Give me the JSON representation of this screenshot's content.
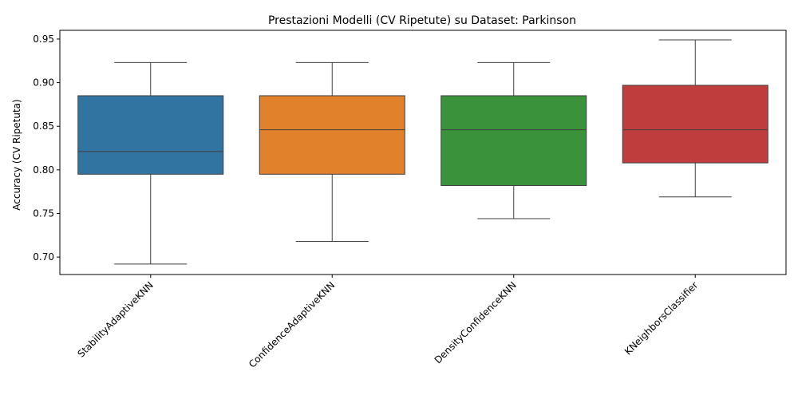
{
  "chart_data": {
    "type": "box",
    "title": "Prestazioni Modelli (CV Ripetute) su Dataset: Parkinson",
    "xlabel": "",
    "ylabel": "Accuracy (CV Ripetuta)",
    "ylim": [
      0.68,
      0.96
    ],
    "yticks": [
      0.7,
      0.75,
      0.8,
      0.85,
      0.9,
      0.95
    ],
    "ytick_labels": [
      "0.70",
      "0.75",
      "0.80",
      "0.85",
      "0.90",
      "0.95"
    ],
    "grid": false,
    "categories": [
      "StabilityAdaptiveKNN",
      "ConfidenceAdaptiveKNN",
      "DensityConfidenceKNN",
      "KNeighborsClassifier"
    ],
    "colors": [
      "#3274a1",
      "#e1812c",
      "#3a923a",
      "#c03d3e"
    ],
    "boxes": [
      {
        "whisker_low": 0.692,
        "q1": 0.795,
        "median": 0.821,
        "q3": 0.885,
        "whisker_high": 0.923
      },
      {
        "whisker_low": 0.718,
        "q1": 0.795,
        "median": 0.846,
        "q3": 0.885,
        "whisker_high": 0.923
      },
      {
        "whisker_low": 0.744,
        "q1": 0.782,
        "median": 0.846,
        "q3": 0.885,
        "whisker_high": 0.923
      },
      {
        "whisker_low": 0.769,
        "q1": 0.808,
        "median": 0.846,
        "q3": 0.897,
        "whisker_high": 0.949
      }
    ]
  }
}
